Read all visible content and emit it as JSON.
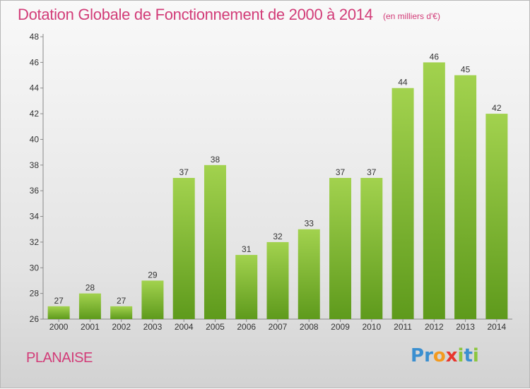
{
  "title": "Dotation Globale de Fonctionnement de 2000 à 2014",
  "unit": "(en milliers d'€)",
  "commune": "PLANAISE",
  "logo": {
    "letters": [
      "P",
      "r",
      "o",
      "x",
      "i",
      "t",
      "i"
    ],
    "colors": [
      "#3a8fd0",
      "#3a8fd0",
      "#f39a1e",
      "#e8352d",
      "#8cc63e",
      "#3a8fd0",
      "#8cc63e"
    ]
  },
  "chart_data": {
    "type": "bar",
    "categories": [
      "2000",
      "2001",
      "2002",
      "2003",
      "2004",
      "2005",
      "2006",
      "2007",
      "2008",
      "2009",
      "2010",
      "2011",
      "2012",
      "2013",
      "2014"
    ],
    "values": [
      27,
      28,
      27,
      29,
      37,
      38,
      31,
      32,
      33,
      37,
      37,
      44,
      46,
      45,
      42
    ],
    "ylim": [
      26,
      48
    ],
    "yticks": [
      26,
      28,
      30,
      32,
      34,
      36,
      38,
      40,
      42,
      44,
      46,
      48
    ],
    "grid": false,
    "bar_color": "#7ab630"
  }
}
